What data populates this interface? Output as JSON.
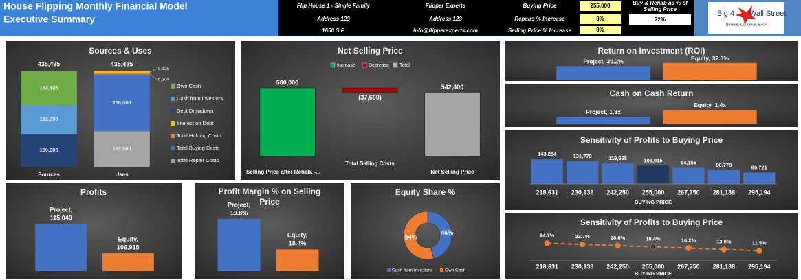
{
  "header": {
    "title": "House Flipping Monthly Financial Model",
    "subtitle": "Executive Summary",
    "property": [
      "Flip House 1 - Single Family",
      "Address 123",
      "1650 S.F."
    ],
    "company": [
      "Flipper Experts",
      "Address 123",
      "info@flipperexperts.com"
    ],
    "inputs": [
      {
        "label": "Buying Price",
        "value": "255,000"
      },
      {
        "label": "Repairs % Increase",
        "value": "0%"
      },
      {
        "label": "Selling Price % Increase",
        "value": "0%"
      }
    ],
    "ratio": {
      "label": "Buy & Rehab as % of Selling Price",
      "value": "72%"
    },
    "logo": {
      "left": "Big 4",
      "right": "Wall Street",
      "tagline": "Believe, Conceive, Excel"
    }
  },
  "chart_data": [
    {
      "type": "bar",
      "stacked": true,
      "title": "Sources & Uses",
      "categories": [
        "Sources",
        "Uses"
      ],
      "totals": [
        435485,
        435485
      ],
      "total_labels": [
        "435,485",
        "435,485"
      ],
      "series": [
        {
          "name": "Own Cash",
          "color": "#70ad47",
          "values": [
            154485,
            null
          ],
          "value_labels": [
            "154,485",
            null
          ]
        },
        {
          "name": "Cash from Investors",
          "color": "#5b9bd5",
          "values": [
            131000,
            null
          ],
          "value_labels": [
            "131,000",
            null
          ]
        },
        {
          "name": "Debt Drawdown",
          "color": "#264478",
          "values": [
            150000,
            null
          ],
          "value_labels": [
            "150,000",
            null
          ]
        },
        {
          "name": "Interest on Debt",
          "color": "#ffc000",
          "values": [
            null,
            8125
          ],
          "value_labels": [
            null,
            "8,125"
          ]
        },
        {
          "name": "Total Holding Costs",
          "color": "#ed7d31",
          "values": [
            null,
            6300
          ],
          "value_labels": [
            null,
            "6,300"
          ]
        },
        {
          "name": "Total Buying Costs",
          "color": "#4472c4",
          "values": [
            null,
            259000
          ],
          "value_labels": [
            null,
            "259,000"
          ]
        },
        {
          "name": "Total Repair Costs",
          "color": "#a5a5a5",
          "values": [
            null,
            162060
          ],
          "value_labels": [
            null,
            "162,060"
          ]
        }
      ]
    },
    {
      "type": "waterfall",
      "title": "Net Selling Price",
      "categories": [
        "Selling Price after Rehab. -...",
        "Total Selling Costs",
        "Net Selling Price"
      ],
      "series": [
        {
          "name": "Increase",
          "color": "#00b050",
          "values": [
            580000,
            null,
            null
          ],
          "value_labels": [
            "580,000",
            null,
            null
          ]
        },
        {
          "name": "Decrease",
          "color": "#c00000",
          "values": [
            null,
            -37600,
            null
          ],
          "value_labels": [
            null,
            "(37,600)",
            null
          ]
        },
        {
          "name": "Total",
          "color": "#a6a6a6",
          "values": [
            null,
            null,
            542400
          ],
          "value_labels": [
            null,
            null,
            "542,400"
          ]
        }
      ]
    },
    {
      "type": "bar",
      "title": "Profits",
      "categories": [
        "Project,",
        "Equity,"
      ],
      "values": [
        115040,
        106915
      ],
      "value_labels": [
        "115,040",
        "106,915"
      ],
      "colors": [
        "#4472c4",
        "#ed7d31"
      ],
      "ylim": [
        102000,
        120000
      ]
    },
    {
      "type": "bar",
      "title": "Profit Margin % on Selling Price",
      "categories": [
        "Project,",
        "Equity,"
      ],
      "values": [
        19.8,
        18.4
      ],
      "value_labels": [
        "19.8%",
        "18.4%"
      ],
      "colors": [
        "#4472c4",
        "#ed7d31"
      ],
      "ylim": [
        17.4,
        20.4
      ]
    },
    {
      "type": "pie",
      "donut": true,
      "title": "Equity Share %",
      "categories": [
        "Cash from Investors",
        "Own Cash"
      ],
      "values": [
        46,
        54
      ],
      "value_labels": [
        "46%",
        "54%"
      ],
      "colors": [
        "#4472c4",
        "#ed7d31"
      ]
    },
    {
      "type": "bar",
      "title": "Return on Investment (ROI)",
      "categories": [
        "Project,",
        "Equity,"
      ],
      "values": [
        30.2,
        37.3
      ],
      "value_labels": [
        "30.2%",
        "37.3%"
      ],
      "colors": [
        "#4472c4",
        "#ed7d31"
      ],
      "ylim": [
        0,
        40
      ]
    },
    {
      "type": "bar",
      "title": "Cash on Cash Return",
      "categories": [
        "Project,",
        "Equity,"
      ],
      "values": [
        1.3,
        1.4
      ],
      "value_labels": [
        "1.3x",
        "1.4x"
      ],
      "colors": [
        "#4472c4",
        "#ed7d31"
      ],
      "ylim": [
        1.2,
        1.45
      ]
    },
    {
      "type": "bar",
      "title": "Sensitivity of Profits to Buying Price",
      "categories": [
        "218,631",
        "230,138",
        "242,250",
        "255,000",
        "267,750",
        "281,138",
        "295,194"
      ],
      "values": [
        143284,
        131778,
        119665,
        106915,
        94165,
        80778,
        66721
      ],
      "value_labels": [
        "143,284",
        "131,778",
        "119,665",
        "106,915",
        "94,165",
        "80,778",
        "66,721"
      ],
      "colors": [
        "#4472c4",
        "#4472c4",
        "#4472c4",
        "#1f3864",
        "#4472c4",
        "#4472c4",
        "#4472c4"
      ],
      "xlabel": "BUYING PRICE",
      "ylim": [
        0,
        160000
      ]
    },
    {
      "type": "line",
      "title": "Sensitivity of Profits to Buying Price",
      "categories": [
        "218,631",
        "230,138",
        "242,250",
        "255,000",
        "267,750",
        "281,138",
        "295,194"
      ],
      "values": [
        24.7,
        22.7,
        20.6,
        18.4,
        16.2,
        13.9,
        11.5
      ],
      "value_labels": [
        "24.7%",
        "22.7%",
        "20.6%",
        "18.4%",
        "16.2%",
        "13.9%",
        "11.5%"
      ],
      "color": "#ed7d31",
      "dashed": true,
      "marker_colors": [
        "#ed7d31",
        "#ed7d31",
        "#ed7d31",
        "#1f2f4f",
        "#ed7d31",
        "#ed7d31",
        "#ed7d31"
      ],
      "xlabel": "BUYING PRICE",
      "ylim": [
        -6,
        48
      ]
    }
  ]
}
